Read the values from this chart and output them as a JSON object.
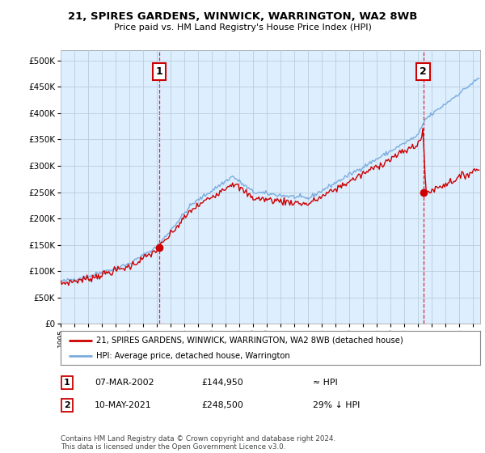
{
  "title": "21, SPIRES GARDENS, WINWICK, WARRINGTON, WA2 8WB",
  "subtitle": "Price paid vs. HM Land Registry's House Price Index (HPI)",
  "legend_line1": "21, SPIRES GARDENS, WINWICK, WARRINGTON, WA2 8WB (detached house)",
  "legend_line2": "HPI: Average price, detached house, Warrington",
  "annotation1_label": "1",
  "annotation1_date": "07-MAR-2002",
  "annotation1_price": "£144,950",
  "annotation1_hpi": "≈ HPI",
  "annotation2_label": "2",
  "annotation2_date": "10-MAY-2021",
  "annotation2_price": "£248,500",
  "annotation2_hpi": "29% ↓ HPI",
  "footnote": "Contains HM Land Registry data © Crown copyright and database right 2024.\nThis data is licensed under the Open Government Licence v3.0.",
  "sale1_year": 2002.18,
  "sale1_price": 144950,
  "sale2_year": 2021.36,
  "sale2_price": 248500,
  "hpi_color": "#7aacdc",
  "price_color": "#cc0000",
  "background_color": "#ffffff",
  "chart_bg_color": "#ddeeff",
  "grid_color": "#bbccdd",
  "ylim_min": 0,
  "ylim_max": 520000,
  "xlim_min": 1995.0,
  "xlim_max": 2025.5
}
